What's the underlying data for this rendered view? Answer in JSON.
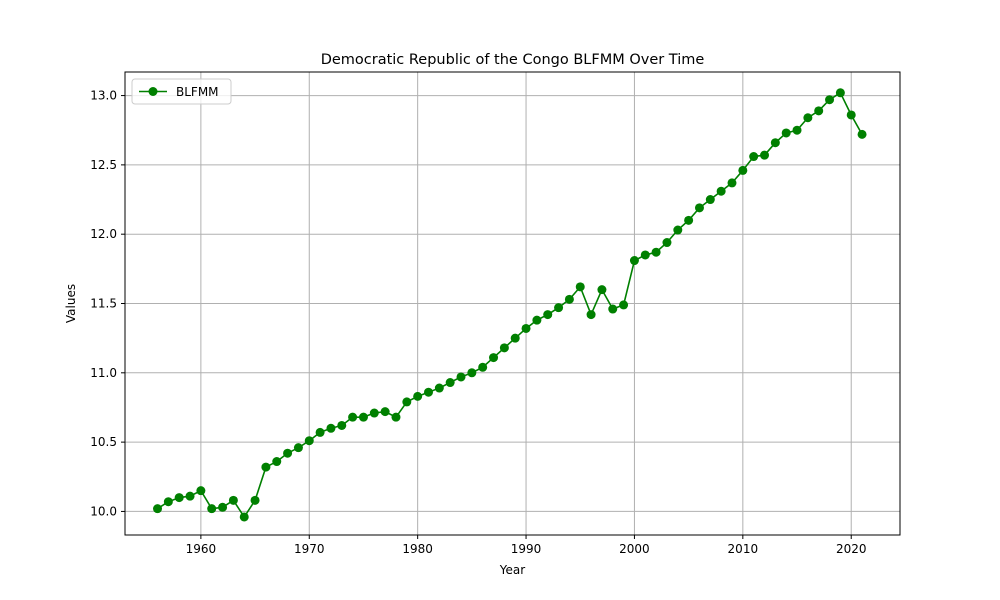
{
  "chart_data": {
    "type": "line",
    "title": "Democratic Republic of the Congo BLFMM Over Time",
    "xlabel": "Year",
    "ylabel": "Values",
    "xlim": [
      1953,
      2024.5
    ],
    "ylim": [
      9.83,
      13.17
    ],
    "x_ticks": [
      1960,
      1970,
      1980,
      1990,
      2000,
      2010,
      2020
    ],
    "x_tick_labels": [
      "1960",
      "1970",
      "1980",
      "1990",
      "2000",
      "2010",
      "2020"
    ],
    "y_ticks": [
      10.0,
      10.5,
      11.0,
      11.5,
      12.0,
      12.5,
      13.0
    ],
    "y_tick_labels": [
      "10.0",
      "10.5",
      "11.0",
      "11.5",
      "12.0",
      "12.5",
      "13.0"
    ],
    "grid": true,
    "legend": {
      "position": "top-left"
    },
    "series": [
      {
        "name": "BLFMM",
        "color": "#008000",
        "marker": "circle",
        "x": [
          1956,
          1957,
          1958,
          1959,
          1960,
          1961,
          1962,
          1963,
          1964,
          1965,
          1966,
          1967,
          1968,
          1969,
          1970,
          1971,
          1972,
          1973,
          1974,
          1975,
          1976,
          1977,
          1978,
          1979,
          1980,
          1981,
          1982,
          1983,
          1984,
          1985,
          1986,
          1987,
          1988,
          1989,
          1990,
          1991,
          1992,
          1993,
          1994,
          1995,
          1996,
          1997,
          1998,
          1999,
          2000,
          2001,
          2002,
          2003,
          2004,
          2005,
          2006,
          2007,
          2008,
          2009,
          2010,
          2011,
          2012,
          2013,
          2014,
          2015,
          2016,
          2017,
          2018,
          2019,
          2020,
          2021
        ],
        "values": [
          10.02,
          10.07,
          10.1,
          10.11,
          10.15,
          10.02,
          10.03,
          10.08,
          9.96,
          10.08,
          10.32,
          10.36,
          10.42,
          10.46,
          10.51,
          10.57,
          10.6,
          10.62,
          10.68,
          10.68,
          10.71,
          10.72,
          10.68,
          10.79,
          10.83,
          10.86,
          10.89,
          10.93,
          10.97,
          11.0,
          11.04,
          11.11,
          11.18,
          11.25,
          11.32,
          11.38,
          11.42,
          11.47,
          11.53,
          11.62,
          11.42,
          11.6,
          11.46,
          11.49,
          11.81,
          11.85,
          11.87,
          11.94,
          12.03,
          12.1,
          12.19,
          12.25,
          12.31,
          12.37,
          12.46,
          12.56,
          12.57,
          12.66,
          12.73,
          12.75,
          12.84,
          12.89,
          12.97,
          13.02,
          12.86,
          12.72
        ]
      }
    ]
  }
}
